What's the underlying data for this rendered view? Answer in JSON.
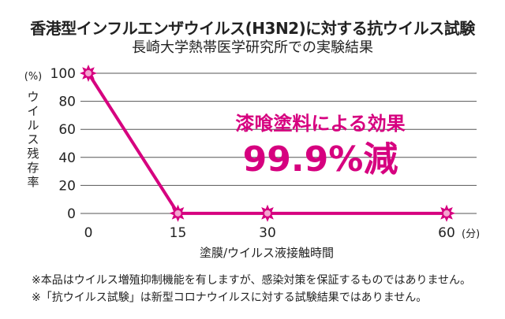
{
  "header": {
    "title": "香港型インフルエンザウイルス(H3N2)に対する抗ウイルス試験",
    "subtitle": "長崎大学熱帯医学研究所での実験結果"
  },
  "chart_data": {
    "type": "line",
    "title": "香港型インフルエンザウイルス(H3N2)に対する抗ウイルス試験",
    "subtitle": "長崎大学熱帯医学研究所での実験結果",
    "x": [
      0,
      15,
      30,
      60
    ],
    "series": [
      {
        "values": [
          100,
          0.1,
          0.1,
          0.1
        ]
      }
    ],
    "xlabel": "塗膜/ウイルス液接触時間",
    "x_unit": "(分)",
    "ylabel": "ウイルス残存率",
    "y_unit": "(%)",
    "yticks": [
      0,
      20,
      40,
      60,
      80,
      100
    ],
    "xticks": [
      0,
      15,
      30,
      60
    ],
    "ylim": [
      0,
      100
    ],
    "xlim": [
      0,
      60
    ],
    "grid": "horizontal",
    "annotation": {
      "line1": "漆喰塗料による効果",
      "line2": "99.9%減"
    },
    "line_color": "#d6007f",
    "marker_color": "#d6007f"
  },
  "notes": [
    "※本品はウイルス増殖抑制機能を有しますが、感染対策を保証するものではありません。",
    "※「抗ウイルス試験」は新型コロナウイルスに対する試験結果ではありません。"
  ]
}
